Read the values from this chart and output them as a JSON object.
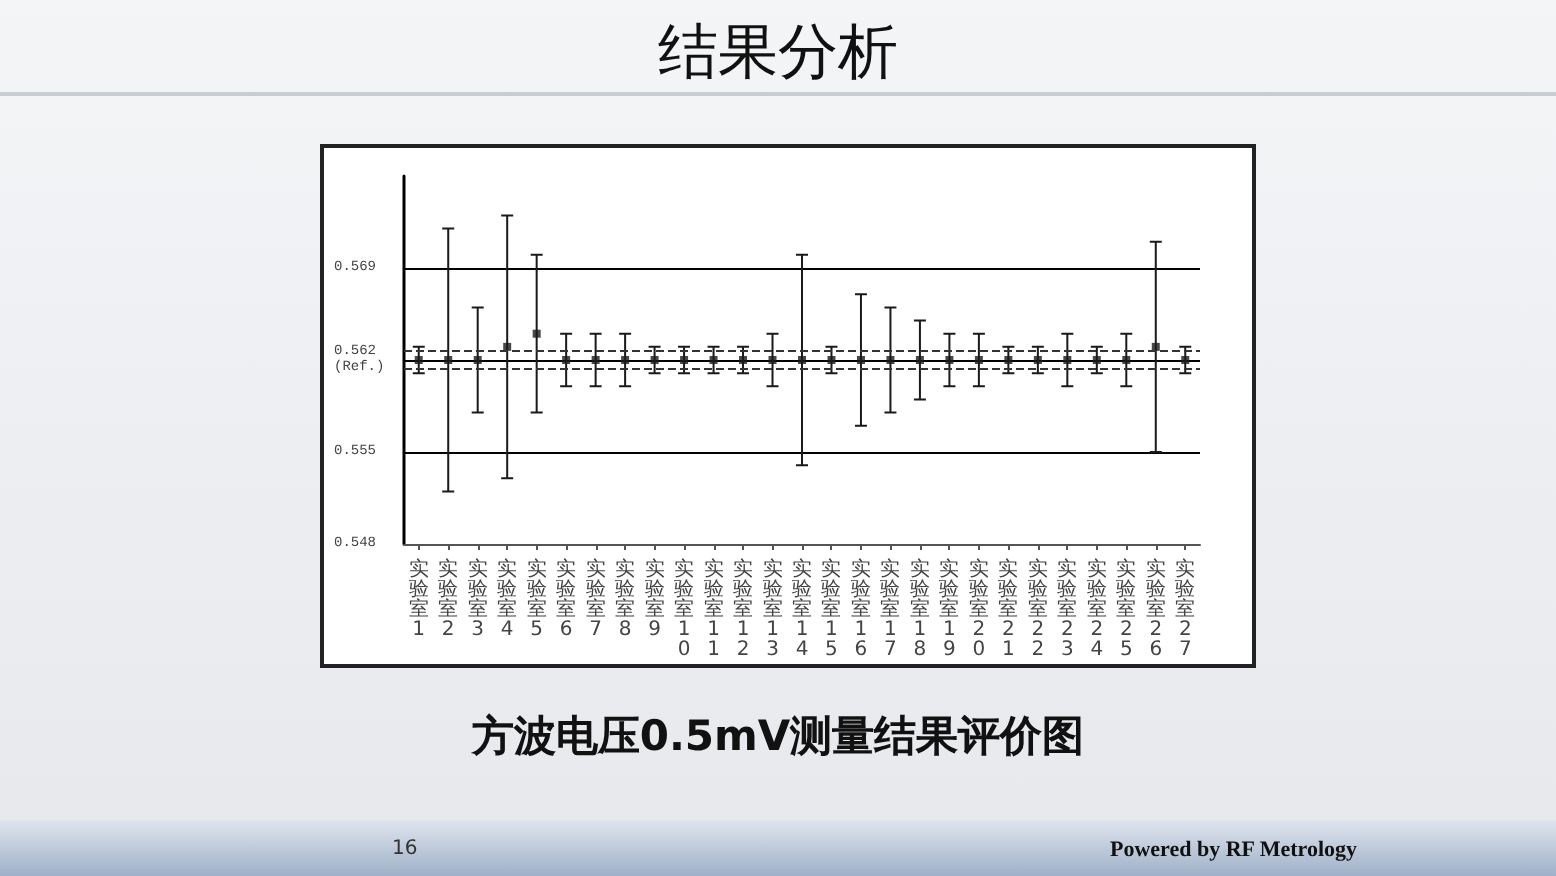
{
  "chart_data": {
    "type": "scatter",
    "title": "结果分析",
    "subtitle": "方波电压0.5mV测量结果评价图",
    "categories": [
      "实验室1",
      "实验室2",
      "实验室3",
      "实验室4",
      "实验室5",
      "实验室6",
      "实验室7",
      "实验室8",
      "实验室9",
      "实验室10",
      "实验室11",
      "实验室12",
      "实验室13",
      "实验室14",
      "实验室15",
      "实验室16",
      "实验室17",
      "实验室18",
      "实验室19",
      "实验室20",
      "实验室21",
      "实验室22",
      "实验室23",
      "实验室24",
      "实验室25",
      "实验室26",
      "实验室27"
    ],
    "series": [
      {
        "color": "#1a1a1a",
        "values": [
          0.562,
          0.562,
          0.562,
          0.563,
          0.564,
          0.562,
          0.562,
          0.562,
          0.562,
          0.562,
          0.562,
          0.562,
          0.562,
          0.562,
          0.562,
          0.562,
          0.562,
          0.562,
          0.562,
          0.562,
          0.562,
          0.562,
          0.562,
          0.562,
          0.562,
          0.563,
          0.562
        ],
        "errors": [
          0.001,
          0.01,
          0.004,
          0.01,
          0.006,
          0.002,
          0.002,
          0.002,
          0.001,
          0.001,
          0.001,
          0.001,
          0.002,
          0.008,
          0.001,
          0.005,
          0.004,
          0.003,
          0.002,
          0.002,
          0.001,
          0.001,
          0.002,
          0.001,
          0.002,
          0.008,
          0.001
        ]
      }
    ],
    "ylim": [
      0.548,
      0.576
    ],
    "yticks": [
      0.548,
      0.555,
      {
        "value": 0.562,
        "label": "0.562\n(Ref.)"
      },
      0.569
    ],
    "grid": "y",
    "marker": "square",
    "ref_lines": [
      {
        "axis": "y",
        "value": 0.5627,
        "line_style": "dashed",
        "color": "#333333"
      },
      {
        "axis": "y",
        "value": 0.5613,
        "line_style": "dashed",
        "color": "#333333"
      }
    ],
    "annotations": [
      "16",
      "Powered by RF Metrology"
    ]
  }
}
